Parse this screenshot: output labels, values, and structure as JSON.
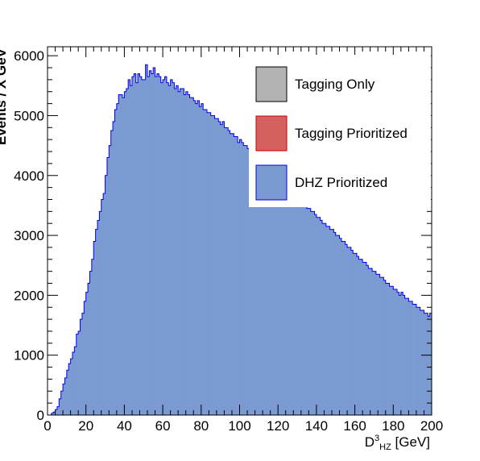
{
  "chart_data": {
    "type": "bar",
    "subtype": "histogram",
    "xlabel": {
      "main": "D",
      "sup": "3",
      "sub": "HZ",
      "unit": " [GeV]"
    },
    "ylabel": "Events / X GeV",
    "xlim": [
      0,
      200
    ],
    "ylim": [
      0,
      6150
    ],
    "x_ticks": [
      0,
      20,
      40,
      60,
      80,
      100,
      120,
      140,
      160,
      180,
      200
    ],
    "y_ticks": [
      0,
      1000,
      2000,
      3000,
      4000,
      5000,
      6000
    ],
    "bin_width": 1,
    "grid": false,
    "legend_position": "top-right",
    "legend": [
      {
        "label": "Tagging Only",
        "fill": "#b3b3b3",
        "stroke": "#000000"
      },
      {
        "label": "Tagging Prioritized",
        "fill": "#d46060",
        "stroke": "#cc0000"
      },
      {
        "label": "DHZ Prioritized",
        "fill": "#7b9ad2",
        "stroke": "#0000ee"
      }
    ],
    "series": [
      {
        "name": "DHZ Prioritized",
        "fill": "#7b9ad2",
        "stroke": "#0000ee",
        "values": [
          0,
          0,
          30,
          50,
          90,
          140,
          270,
          400,
          520,
          620,
          750,
          860,
          940,
          1050,
          1140,
          1350,
          1400,
          1600,
          1700,
          1900,
          2050,
          2200,
          2400,
          2600,
          2900,
          3100,
          3250,
          3400,
          3600,
          3700,
          4000,
          4300,
          4500,
          4750,
          4900,
          5100,
          5200,
          5350,
          5350,
          5300,
          5400,
          5450,
          5600,
          5500,
          5650,
          5700,
          5550,
          5700,
          5650,
          5600,
          5600,
          5850,
          5650,
          5750,
          5700,
          5800,
          5650,
          5700,
          5650,
          5550,
          5600,
          5650,
          5550,
          5500,
          5600,
          5550,
          5450,
          5500,
          5400,
          5450,
          5450,
          5350,
          5400,
          5350,
          5300,
          5300,
          5250,
          5200,
          5250,
          5150,
          5200,
          5100,
          5100,
          5050,
          5050,
          5000,
          5000,
          4950,
          4950,
          4900,
          4850,
          4900,
          4800,
          4800,
          4750,
          4700,
          4700,
          4650,
          4650,
          4550,
          4600,
          4550,
          4500,
          4500,
          4450,
          4450,
          4350,
          4400,
          4350,
          4350,
          4300,
          4250,
          4200,
          4200,
          4150,
          4100,
          4100,
          4050,
          4000,
          4000,
          3950,
          3900,
          3900,
          3850,
          3850,
          3800,
          3750,
          3700,
          3700,
          3650,
          3600,
          3600,
          3550,
          3550,
          3500,
          3450,
          3450,
          3400,
          3400,
          3350,
          3300,
          3300,
          3250,
          3200,
          3200,
          3150,
          3150,
          3100,
          3100,
          3050,
          3000,
          3000,
          2950,
          2900,
          2900,
          2850,
          2800,
          2800,
          2750,
          2700,
          2700,
          2650,
          2600,
          2600,
          2550,
          2550,
          2500,
          2450,
          2450,
          2400,
          2400,
          2350,
          2350,
          2300,
          2300,
          2250,
          2200,
          2200,
          2150,
          2150,
          2100,
          2100,
          2050,
          2000,
          2050,
          2000,
          1950,
          1950,
          1900,
          1900,
          1850,
          1850,
          1800,
          1800,
          1750,
          1750,
          1700,
          1700,
          1650,
          1700
        ]
      }
    ]
  }
}
